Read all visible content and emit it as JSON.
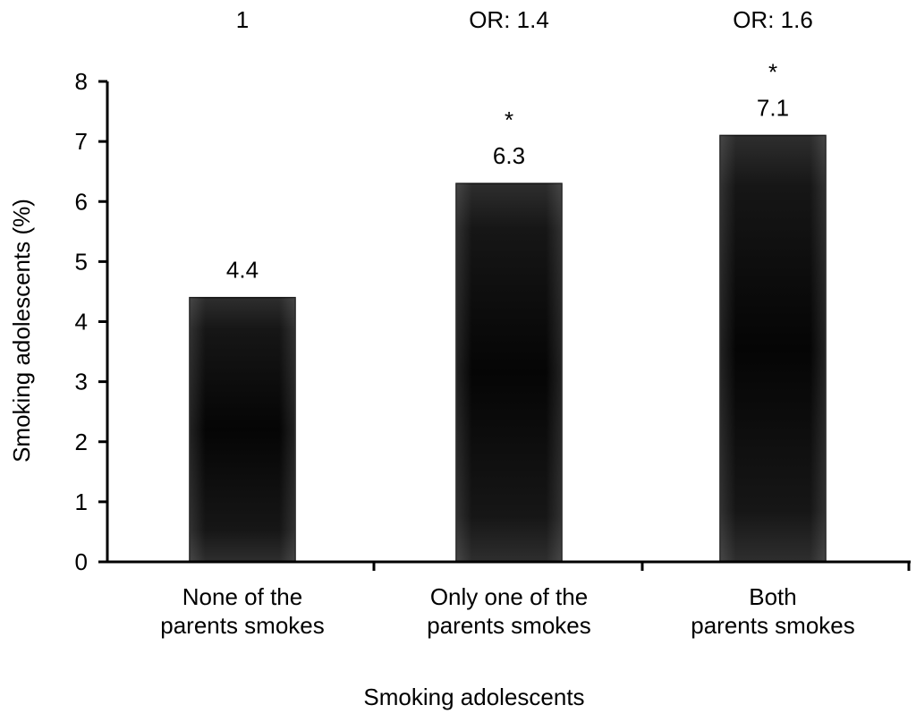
{
  "chart_data": {
    "type": "bar",
    "categories": [
      [
        "None of the",
        "parents  smokes"
      ],
      [
        "Only one of the",
        "parents smokes"
      ],
      [
        "Both",
        "parents smokes"
      ]
    ],
    "values": [
      4.4,
      6.3,
      7.1
    ],
    "value_labels": [
      "4.4",
      "6.3",
      "7.1"
    ],
    "odds_ratio_labels": [
      "1",
      "OR: 1.4",
      "OR: 1.6"
    ],
    "significance_markers": [
      "",
      "*",
      "*"
    ],
    "xlabel": "Smoking adolescents",
    "ylabel": "Smoking adolescents (%)",
    "ylim": [
      0,
      8
    ],
    "yticks": [
      0,
      1,
      2,
      3,
      4,
      5,
      6,
      7,
      8
    ],
    "grid": false,
    "legend": "none",
    "bar_color": "#0a0a0a",
    "bar_highlight_color": "#3a3a3a",
    "axis_color": "#000000"
  }
}
